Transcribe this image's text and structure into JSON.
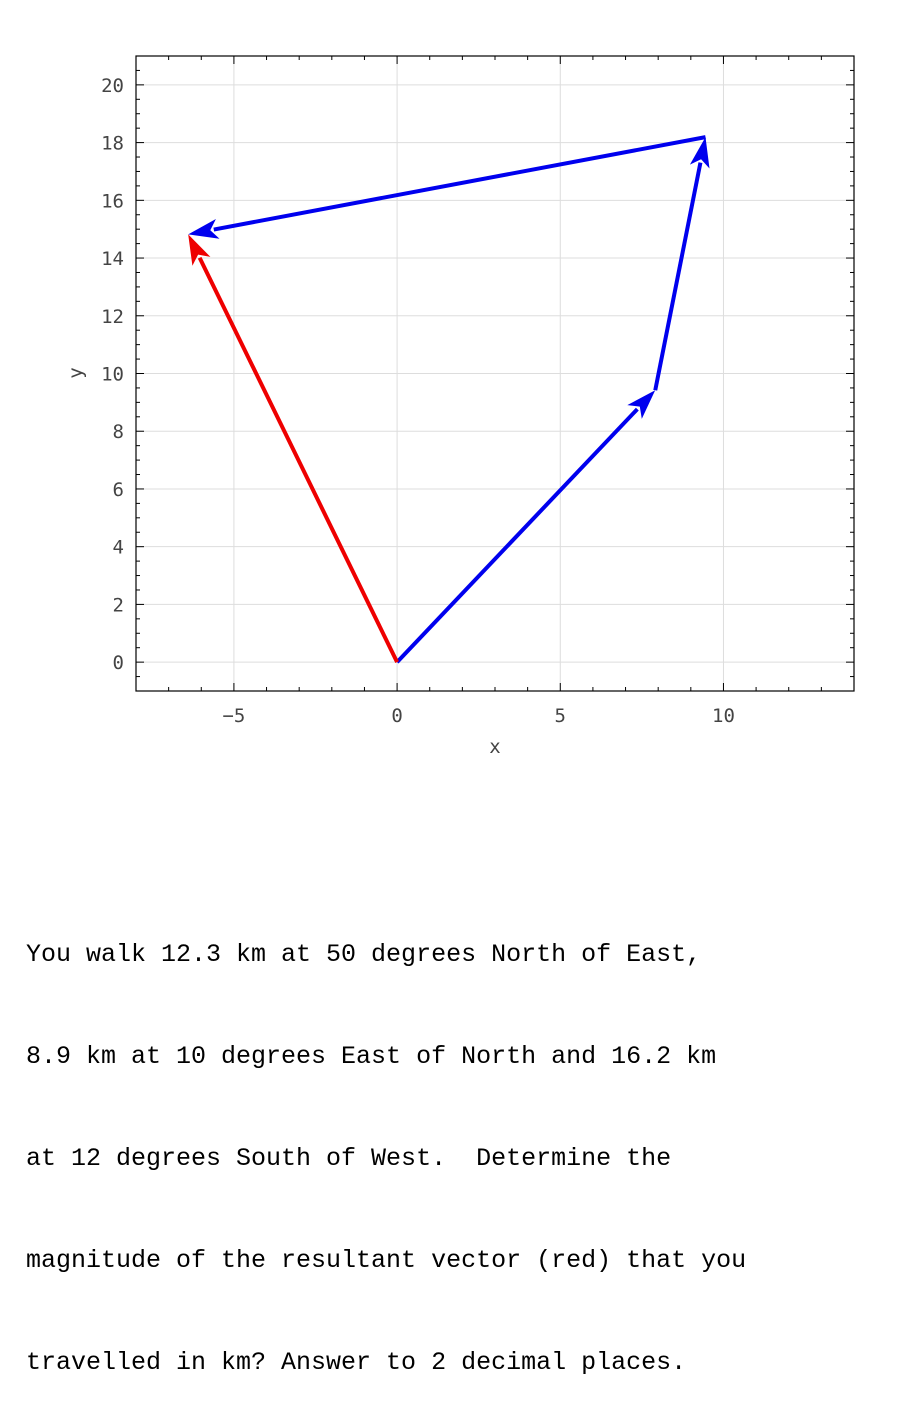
{
  "chart_data": {
    "type": "vector-diagram",
    "xlabel": "x",
    "ylabel": "y",
    "xlim": [
      -8,
      14
    ],
    "ylim": [
      -1,
      21
    ],
    "xticks": [
      -5,
      0,
      5,
      10
    ],
    "yticks": [
      0,
      2,
      4,
      6,
      8,
      10,
      12,
      14,
      16,
      18,
      20
    ],
    "grid": true,
    "vectors": [
      {
        "from": [
          0,
          0
        ],
        "to": [
          7.91,
          9.42
        ],
        "color": "#0000ee"
      },
      {
        "from": [
          7.91,
          9.42
        ],
        "to": [
          9.45,
          18.19
        ],
        "color": "#0000ee"
      },
      {
        "from": [
          9.45,
          18.19
        ],
        "to": [
          -6.4,
          14.82
        ],
        "color": "#0000ee"
      },
      {
        "from": [
          0,
          0
        ],
        "to": [
          -6.4,
          14.82
        ],
        "color": "#ee0000"
      }
    ]
  },
  "question": {
    "lines": [
      "You walk 12.3 km at 50 degrees North of East,",
      "8.9 km at 10 degrees East of North and 16.2 km",
      "at 12 degrees South of West.  Determine the",
      "magnitude of the resultant vector (red) that you",
      "travelled in km? Answer to 2 decimal places."
    ]
  }
}
